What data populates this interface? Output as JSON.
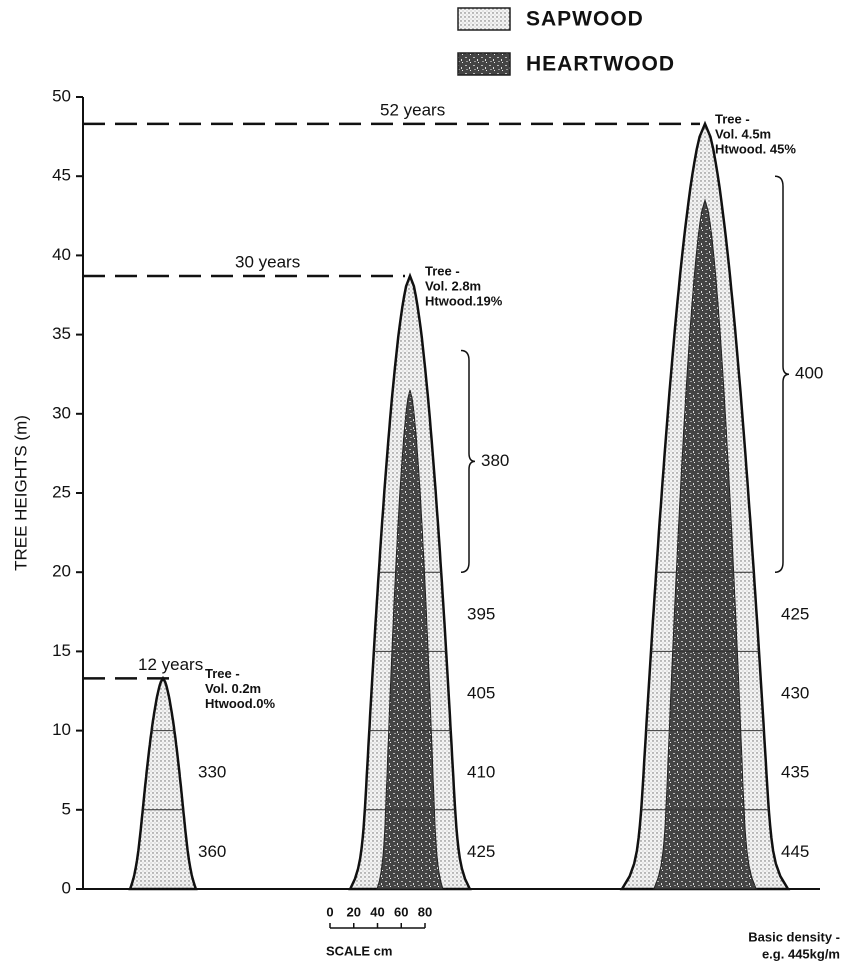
{
  "chart_data": {
    "type": "tree-profile",
    "ylabel": "TREE HEIGHTS  (m)",
    "ylim": [
      0,
      50
    ],
    "yticks": [
      0,
      5,
      10,
      15,
      20,
      25,
      30,
      35,
      40,
      45,
      50
    ],
    "legend": [
      {
        "name": "SAPWOOD"
      },
      {
        "name": "HEARTWOOD"
      }
    ],
    "trees": [
      {
        "age_label": "12 years",
        "height": 13.3,
        "annotation": [
          "Tree -",
          "Vol. 0.2m",
          "Htwood.0%"
        ],
        "segments": [
          {
            "from": 0,
            "to": 5,
            "density": 360
          },
          {
            "from": 5,
            "to": 10,
            "density": 330
          }
        ]
      },
      {
        "age_label": "30 years",
        "height": 38.7,
        "heartwood_height": 31.5,
        "annotation": [
          "Tree -",
          "Vol. 2.8m",
          "Htwood.19%"
        ],
        "segments": [
          {
            "from": 0,
            "to": 5,
            "density": 425
          },
          {
            "from": 5,
            "to": 10,
            "density": 410
          },
          {
            "from": 10,
            "to": 15,
            "density": 405
          },
          {
            "from": 15,
            "to": 20,
            "density": 395
          },
          {
            "from": 20,
            "to": 34,
            "density": 380,
            "bracket": true
          }
        ]
      },
      {
        "age_label": "52 years",
        "height": 48.3,
        "heartwood_height": 43.5,
        "annotation": [
          "Tree -",
          "Vol. 4.5m",
          "Htwood. 45%"
        ],
        "segments": [
          {
            "from": 0,
            "to": 5,
            "density": 445
          },
          {
            "from": 5,
            "to": 10,
            "density": 435
          },
          {
            "from": 10,
            "to": 15,
            "density": 430
          },
          {
            "from": 15,
            "to": 20,
            "density": 425
          },
          {
            "from": 20,
            "to": 45,
            "density": 400,
            "bracket": true
          }
        ]
      }
    ],
    "scale": {
      "ticks": [
        0,
        20,
        40,
        60,
        80
      ],
      "label": "SCALE cm"
    },
    "note": [
      "Basic density -",
      "e.g. 445kg/m"
    ]
  }
}
